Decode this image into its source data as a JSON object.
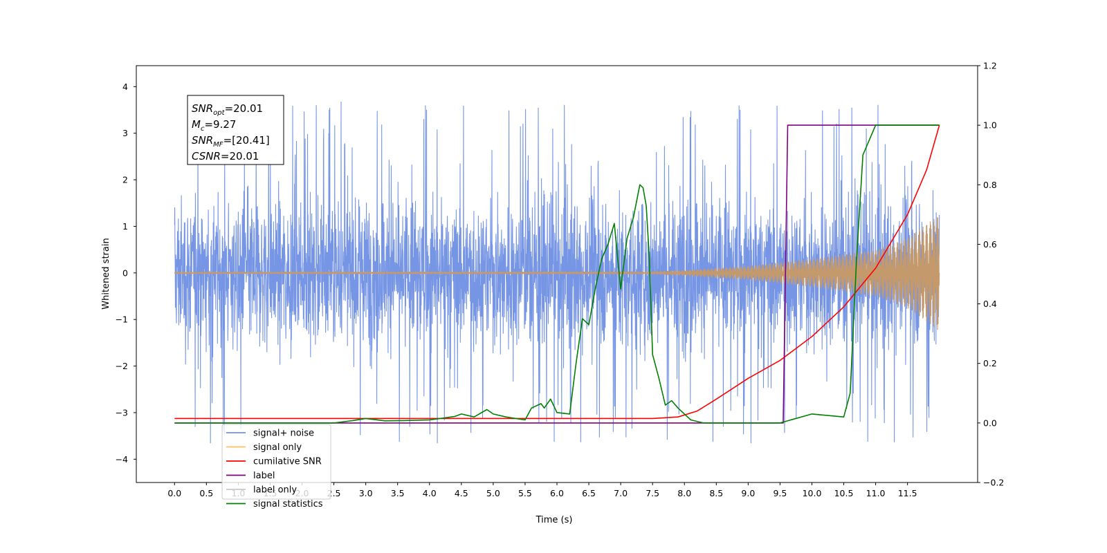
{
  "chart_data": {
    "type": "line",
    "title": "",
    "xlabel": "Time (s)",
    "ylabel": "Whitened strain",
    "xlim": [
      -0.6,
      12.6
    ],
    "ylim": [
      -4.5,
      4.45
    ],
    "ylim_right": [
      -0.2,
      1.2
    ],
    "grid": false,
    "xticks": [
      "0.0",
      "0.5",
      "1.0",
      "1.5",
      "2.0",
      "2.5",
      "3.0",
      "3.5",
      "4.0",
      "4.5",
      "5.0",
      "5.5",
      "6.0",
      "6.5",
      "7.0",
      "7.5",
      "8.0",
      "8.5",
      "9.0",
      "9.5",
      "10.0",
      "10.5",
      "11.0",
      "11.5"
    ],
    "yticks_left": [
      "−4",
      "−3",
      "−2",
      "−1",
      "0",
      "1",
      "2",
      "3",
      "4"
    ],
    "yticks_right": [
      "−0.2",
      "0.0",
      "0.2",
      "0.4",
      "0.6",
      "0.8",
      "1.0",
      "1.2"
    ],
    "annotation": {
      "lines": [
        {
          "base": "SNR",
          "sub": "opt",
          "value": "=20.01"
        },
        {
          "base": "M",
          "sub": "c",
          "value": "=9.27"
        },
        {
          "base": "SNR",
          "sub": "MF",
          "value": "=[20.41]"
        },
        {
          "base": "CSNR",
          "sub": "",
          "value": "=20.01"
        }
      ]
    },
    "legend": {
      "placement": "lower-left",
      "entries": [
        {
          "label": "signal+ noise",
          "color": "#6f8fe4"
        },
        {
          "label": "signal only",
          "color": "#ffbf5e"
        },
        {
          "label": "cumilative SNR",
          "color": "#ff0000"
        },
        {
          "label": "label",
          "color": "#800080"
        },
        {
          "label": "label only",
          "color": "#c8c8c8"
        },
        {
          "label": "signal statistics",
          "color": "#008000"
        }
      ]
    },
    "series": [
      {
        "name": "signal+ noise",
        "axis": "left",
        "color": "#6f8fe4",
        "description_range": {
          "x": [
            0.0,
            12.0
          ],
          "envelope_typical": [
            -2.5,
            2.6
          ],
          "peaks_max": 4.0,
          "peaks_min": -4.05
        }
      },
      {
        "name": "signal only",
        "axis": "left",
        "color": "#c49a6c",
        "envelope": {
          "x": [
            0.0,
            7.5,
            8.0,
            9.0,
            10.0,
            11.0,
            11.5,
            12.0
          ],
          "amp": [
            0.02,
            0.03,
            0.06,
            0.15,
            0.3,
            0.5,
            0.75,
            1.25
          ]
        }
      },
      {
        "name": "cumilative SNR",
        "axis": "right",
        "color": "#ff0000",
        "x": [
          0.0,
          7.5,
          7.9,
          8.2,
          8.5,
          9.0,
          9.5,
          10.0,
          10.5,
          11.0,
          11.5,
          11.8,
          12.0
        ],
        "y": [
          0.015,
          0.015,
          0.02,
          0.04,
          0.08,
          0.15,
          0.21,
          0.29,
          0.39,
          0.52,
          0.7,
          0.85,
          1.0
        ]
      },
      {
        "name": "label",
        "axis": "right",
        "color": "#800080",
        "x": [
          0.0,
          9.55,
          9.62,
          12.0
        ],
        "y": [
          0.0,
          0.0,
          1.0,
          1.0
        ]
      },
      {
        "name": "signal statistics",
        "axis": "right",
        "color": "#008000",
        "x": [
          0.0,
          2.5,
          2.8,
          3.0,
          3.3,
          3.6,
          4.0,
          4.4,
          4.5,
          4.7,
          4.9,
          5.0,
          5.2,
          5.5,
          5.6,
          5.75,
          5.8,
          5.9,
          6.0,
          6.2,
          6.3,
          6.4,
          6.5,
          6.6,
          6.7,
          6.8,
          6.9,
          7.0,
          7.1,
          7.2,
          7.3,
          7.35,
          7.4,
          7.45,
          7.5,
          7.6,
          7.7,
          7.8,
          7.9,
          8.0,
          8.1,
          8.3,
          8.6,
          9.5,
          10.0,
          10.5,
          10.6,
          10.7,
          10.8,
          10.9,
          11.0,
          12.0
        ],
        "y": [
          0.0,
          0.0,
          0.008,
          0.015,
          0.007,
          0.008,
          0.01,
          0.022,
          0.03,
          0.02,
          0.045,
          0.03,
          0.02,
          0.01,
          0.05,
          0.065,
          0.05,
          0.08,
          0.035,
          0.03,
          0.2,
          0.35,
          0.33,
          0.45,
          0.55,
          0.6,
          0.67,
          0.45,
          0.62,
          0.69,
          0.8,
          0.79,
          0.73,
          0.55,
          0.23,
          0.15,
          0.06,
          0.075,
          0.05,
          0.03,
          0.01,
          0.0,
          0.0,
          0.0,
          0.03,
          0.02,
          0.1,
          0.55,
          0.9,
          0.95,
          1.0,
          1.0
        ]
      }
    ]
  }
}
